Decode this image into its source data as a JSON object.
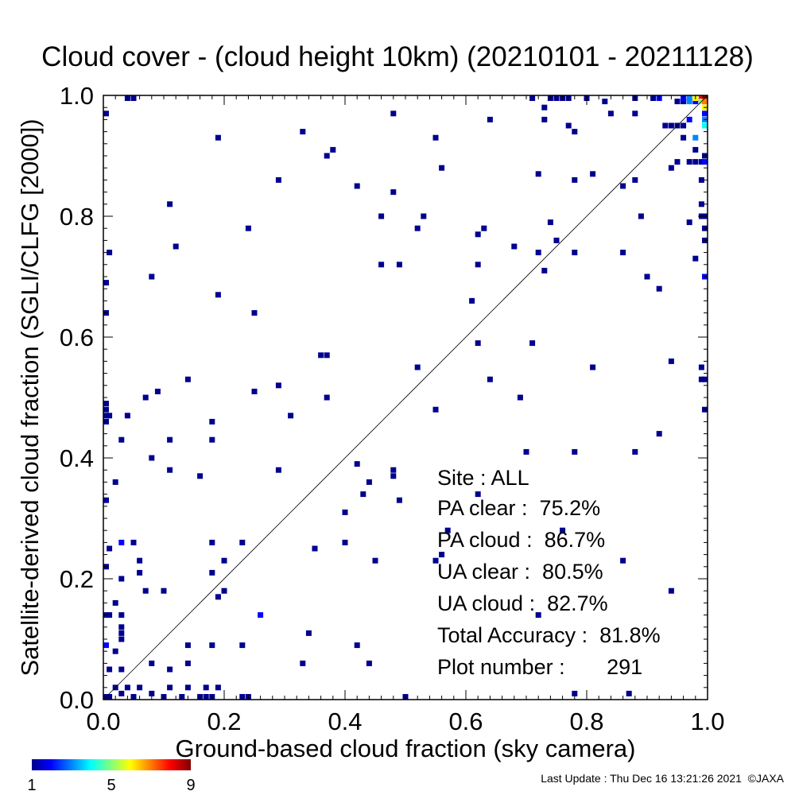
{
  "chart_data": {
    "type": "heatmap",
    "title": "Cloud cover - (cloud height 10km)  (20210101 - 20211128)",
    "xlabel": "Ground-based cloud fraction (sky camera)",
    "ylabel": "Satellite-derived cloud fraction (SGLI/CLFG [2000])",
    "xlim": [
      0,
      1
    ],
    "ylim": [
      0,
      1
    ],
    "xticks": [
      "0.0",
      "0.2",
      "0.4",
      "0.6",
      "0.8",
      "1.0"
    ],
    "yticks": [
      "0.0",
      "0.2",
      "0.4",
      "0.6",
      "0.8",
      "1.0"
    ],
    "bin_size": 0.01,
    "grid": false,
    "diagonal_line": true,
    "colorbar": {
      "min": 1,
      "max": 9,
      "ticks": [
        "1",
        "5",
        "9"
      ],
      "colors": [
        "#00008f",
        "#0000ff",
        "#00ffff",
        "#ffff00",
        "#ff0000",
        "#800000"
      ]
    },
    "points": [
      {
        "x": 0.0,
        "y": 0.0,
        "c": 1
      },
      {
        "x": 0.01,
        "y": 0.0,
        "c": 1
      },
      {
        "x": 0.02,
        "y": 0.02,
        "c": 1
      },
      {
        "x": 0.03,
        "y": 0.01,
        "c": 1
      },
      {
        "x": 0.04,
        "y": 0.02,
        "c": 1
      },
      {
        "x": 0.05,
        "y": 0.0,
        "c": 1
      },
      {
        "x": 0.06,
        "y": 0.02,
        "c": 1
      },
      {
        "x": 0.08,
        "y": 0.01,
        "c": 1
      },
      {
        "x": 0.1,
        "y": 0.0,
        "c": 1
      },
      {
        "x": 0.13,
        "y": 0.0,
        "c": 1
      },
      {
        "x": 0.16,
        "y": 0.0,
        "c": 1
      },
      {
        "x": 0.17,
        "y": 0.0,
        "c": 1
      },
      {
        "x": 0.18,
        "y": 0.0,
        "c": 1
      },
      {
        "x": 0.23,
        "y": 0.0,
        "c": 1
      },
      {
        "x": 0.24,
        "y": 0.0,
        "c": 1
      },
      {
        "x": 0.5,
        "y": 0.0,
        "c": 1
      },
      {
        "x": 0.78,
        "y": 0.01,
        "c": 1
      },
      {
        "x": 0.87,
        "y": 0.01,
        "c": 1
      },
      {
        "x": 0.17,
        "y": 0.02,
        "c": 1
      },
      {
        "x": 0.19,
        "y": 0.02,
        "c": 1
      },
      {
        "x": 0.11,
        "y": 0.02,
        "c": 1
      },
      {
        "x": 0.14,
        "y": 0.02,
        "c": 1
      },
      {
        "x": 0.01,
        "y": 0.05,
        "c": 1
      },
      {
        "x": 0.03,
        "y": 0.05,
        "c": 1
      },
      {
        "x": 0.08,
        "y": 0.06,
        "c": 1
      },
      {
        "x": 0.11,
        "y": 0.05,
        "c": 1
      },
      {
        "x": 0.14,
        "y": 0.06,
        "c": 1
      },
      {
        "x": 0.33,
        "y": 0.06,
        "c": 1
      },
      {
        "x": 0.44,
        "y": 0.06,
        "c": 1
      },
      {
        "x": 0.0,
        "y": 0.09,
        "c": 2
      },
      {
        "x": 0.02,
        "y": 0.08,
        "c": 1
      },
      {
        "x": 0.03,
        "y": 0.1,
        "c": 1
      },
      {
        "x": 0.03,
        "y": 0.11,
        "c": 1
      },
      {
        "x": 0.03,
        "y": 0.12,
        "c": 1
      },
      {
        "x": 0.14,
        "y": 0.09,
        "c": 1
      },
      {
        "x": 0.18,
        "y": 0.09,
        "c": 1
      },
      {
        "x": 0.23,
        "y": 0.09,
        "c": 1
      },
      {
        "x": 0.34,
        "y": 0.11,
        "c": 1
      },
      {
        "x": 0.42,
        "y": 0.09,
        "c": 1
      },
      {
        "x": 0.0,
        "y": 0.14,
        "c": 1
      },
      {
        "x": 0.01,
        "y": 0.14,
        "c": 1
      },
      {
        "x": 0.03,
        "y": 0.14,
        "c": 1
      },
      {
        "x": 0.26,
        "y": 0.14,
        "c": 2
      },
      {
        "x": 0.72,
        "y": 0.14,
        "c": 1
      },
      {
        "x": 0.1,
        "y": 0.18,
        "c": 1
      },
      {
        "x": 0.07,
        "y": 0.18,
        "c": 1
      },
      {
        "x": 0.02,
        "y": 0.16,
        "c": 1
      },
      {
        "x": 0.19,
        "y": 0.17,
        "c": 1
      },
      {
        "x": 0.2,
        "y": 0.18,
        "c": 1
      },
      {
        "x": 0.94,
        "y": 0.18,
        "c": 1
      },
      {
        "x": 0.0,
        "y": 0.22,
        "c": 1
      },
      {
        "x": 0.03,
        "y": 0.2,
        "c": 1
      },
      {
        "x": 0.06,
        "y": 0.21,
        "c": 1
      },
      {
        "x": 0.06,
        "y": 0.23,
        "c": 1
      },
      {
        "x": 0.18,
        "y": 0.21,
        "c": 1
      },
      {
        "x": 0.2,
        "y": 0.23,
        "c": 1
      },
      {
        "x": 0.45,
        "y": 0.23,
        "c": 1
      },
      {
        "x": 0.56,
        "y": 0.24,
        "c": 1
      },
      {
        "x": 0.55,
        "y": 0.23,
        "c": 1
      },
      {
        "x": 0.57,
        "y": 0.28,
        "c": 1
      },
      {
        "x": 0.76,
        "y": 0.28,
        "c": 1
      },
      {
        "x": 0.86,
        "y": 0.23,
        "c": 1
      },
      {
        "x": 0.01,
        "y": 0.25,
        "c": 1
      },
      {
        "x": 0.03,
        "y": 0.26,
        "c": 2
      },
      {
        "x": 0.05,
        "y": 0.26,
        "c": 1
      },
      {
        "x": 0.18,
        "y": 0.26,
        "c": 1
      },
      {
        "x": 0.23,
        "y": 0.26,
        "c": 1
      },
      {
        "x": 0.35,
        "y": 0.25,
        "c": 1
      },
      {
        "x": 0.4,
        "y": 0.26,
        "c": 1
      },
      {
        "x": 0.0,
        "y": 0.33,
        "c": 1
      },
      {
        "x": 0.02,
        "y": 0.36,
        "c": 1
      },
      {
        "x": 0.4,
        "y": 0.31,
        "c": 1
      },
      {
        "x": 0.43,
        "y": 0.34,
        "c": 1
      },
      {
        "x": 0.44,
        "y": 0.36,
        "c": 1
      },
      {
        "x": 0.48,
        "y": 0.37,
        "c": 1
      },
      {
        "x": 0.48,
        "y": 0.38,
        "c": 1
      },
      {
        "x": 0.49,
        "y": 0.33,
        "c": 1
      },
      {
        "x": 0.62,
        "y": 0.34,
        "c": 1
      },
      {
        "x": 0.42,
        "y": 0.39,
        "c": 1
      },
      {
        "x": 0.29,
        "y": 0.38,
        "c": 1
      },
      {
        "x": 0.11,
        "y": 0.38,
        "c": 1
      },
      {
        "x": 0.16,
        "y": 0.37,
        "c": 1
      },
      {
        "x": 0.08,
        "y": 0.4,
        "c": 1
      },
      {
        "x": 0.7,
        "y": 0.41,
        "c": 1
      },
      {
        "x": 0.78,
        "y": 0.41,
        "c": 1
      },
      {
        "x": 0.88,
        "y": 0.41,
        "c": 1
      },
      {
        "x": 0.03,
        "y": 0.43,
        "c": 1
      },
      {
        "x": 0.11,
        "y": 0.43,
        "c": 1
      },
      {
        "x": 0.18,
        "y": 0.43,
        "c": 1
      },
      {
        "x": 0.92,
        "y": 0.44,
        "c": 1
      },
      {
        "x": 0.0,
        "y": 0.46,
        "c": 1
      },
      {
        "x": 0.0,
        "y": 0.47,
        "c": 1
      },
      {
        "x": 0.0,
        "y": 0.48,
        "c": 1
      },
      {
        "x": 0.0,
        "y": 0.49,
        "c": 1
      },
      {
        "x": 0.01,
        "y": 0.47,
        "c": 1
      },
      {
        "x": 0.04,
        "y": 0.47,
        "c": 1
      },
      {
        "x": 0.07,
        "y": 0.5,
        "c": 1
      },
      {
        "x": 0.09,
        "y": 0.51,
        "c": 1
      },
      {
        "x": 0.14,
        "y": 0.53,
        "c": 1
      },
      {
        "x": 0.18,
        "y": 0.46,
        "c": 1
      },
      {
        "x": 0.25,
        "y": 0.51,
        "c": 1
      },
      {
        "x": 0.29,
        "y": 0.52,
        "c": 1
      },
      {
        "x": 0.31,
        "y": 0.47,
        "c": 1
      },
      {
        "x": 0.37,
        "y": 0.5,
        "c": 1
      },
      {
        "x": 0.55,
        "y": 0.48,
        "c": 1
      },
      {
        "x": 0.52,
        "y": 0.55,
        "c": 1
      },
      {
        "x": 0.64,
        "y": 0.53,
        "c": 1
      },
      {
        "x": 0.69,
        "y": 0.5,
        "c": 1
      },
      {
        "x": 0.81,
        "y": 0.55,
        "c": 1
      },
      {
        "x": 0.94,
        "y": 0.56,
        "c": 1
      },
      {
        "x": 0.99,
        "y": 0.55,
        "c": 1
      },
      {
        "x": 0.99,
        "y": 0.53,
        "c": 1
      },
      {
        "x": 1.0,
        "y": 0.53,
        "c": 1
      },
      {
        "x": 1.0,
        "y": 0.48,
        "c": 1
      },
      {
        "x": 0.36,
        "y": 0.57,
        "c": 1
      },
      {
        "x": 0.37,
        "y": 0.57,
        "c": 1
      },
      {
        "x": 0.62,
        "y": 0.59,
        "c": 1
      },
      {
        "x": 0.71,
        "y": 0.59,
        "c": 1
      },
      {
        "x": 0.0,
        "y": 0.64,
        "c": 1
      },
      {
        "x": 0.25,
        "y": 0.64,
        "c": 1
      },
      {
        "x": 0.61,
        "y": 0.66,
        "c": 1
      },
      {
        "x": 0.19,
        "y": 0.67,
        "c": 1
      },
      {
        "x": 0.0,
        "y": 0.69,
        "c": 1
      },
      {
        "x": 0.08,
        "y": 0.7,
        "c": 1
      },
      {
        "x": 0.92,
        "y": 0.68,
        "c": 1
      },
      {
        "x": 0.9,
        "y": 0.7,
        "c": 1
      },
      {
        "x": 1.0,
        "y": 0.7,
        "c": 2
      },
      {
        "x": 0.73,
        "y": 0.71,
        "c": 1
      },
      {
        "x": 0.01,
        "y": 0.74,
        "c": 1
      },
      {
        "x": 0.12,
        "y": 0.75,
        "c": 1
      },
      {
        "x": 0.46,
        "y": 0.72,
        "c": 1
      },
      {
        "x": 0.49,
        "y": 0.72,
        "c": 1
      },
      {
        "x": 0.62,
        "y": 0.72,
        "c": 1
      },
      {
        "x": 0.68,
        "y": 0.75,
        "c": 1
      },
      {
        "x": 0.72,
        "y": 0.74,
        "c": 1
      },
      {
        "x": 0.75,
        "y": 0.76,
        "c": 1
      },
      {
        "x": 0.78,
        "y": 0.74,
        "c": 1
      },
      {
        "x": 0.86,
        "y": 0.74,
        "c": 1
      },
      {
        "x": 0.98,
        "y": 0.73,
        "c": 1
      },
      {
        "x": 1.0,
        "y": 0.76,
        "c": 1
      },
      {
        "x": 0.24,
        "y": 0.78,
        "c": 1
      },
      {
        "x": 0.52,
        "y": 0.78,
        "c": 1
      },
      {
        "x": 0.53,
        "y": 0.8,
        "c": 1
      },
      {
        "x": 0.46,
        "y": 0.8,
        "c": 1
      },
      {
        "x": 0.62,
        "y": 0.77,
        "c": 1
      },
      {
        "x": 0.63,
        "y": 0.78,
        "c": 1
      },
      {
        "x": 0.74,
        "y": 0.79,
        "c": 1
      },
      {
        "x": 0.89,
        "y": 0.8,
        "c": 1
      },
      {
        "x": 0.97,
        "y": 0.79,
        "c": 1
      },
      {
        "x": 0.99,
        "y": 0.8,
        "c": 1
      },
      {
        "x": 1.0,
        "y": 0.8,
        "c": 1
      },
      {
        "x": 1.0,
        "y": 0.78,
        "c": 1
      },
      {
        "x": 0.11,
        "y": 0.82,
        "c": 1
      },
      {
        "x": 0.48,
        "y": 0.84,
        "c": 1
      },
      {
        "x": 0.42,
        "y": 0.85,
        "c": 1
      },
      {
        "x": 0.29,
        "y": 0.86,
        "c": 1
      },
      {
        "x": 0.72,
        "y": 0.87,
        "c": 1
      },
      {
        "x": 0.78,
        "y": 0.86,
        "c": 1
      },
      {
        "x": 0.81,
        "y": 0.87,
        "c": 1
      },
      {
        "x": 0.86,
        "y": 0.85,
        "c": 1
      },
      {
        "x": 0.88,
        "y": 0.86,
        "c": 1
      },
      {
        "x": 0.99,
        "y": 0.82,
        "c": 1
      },
      {
        "x": 0.99,
        "y": 0.86,
        "c": 1
      },
      {
        "x": 0.37,
        "y": 0.9,
        "c": 1
      },
      {
        "x": 0.38,
        "y": 0.91,
        "c": 1
      },
      {
        "x": 0.56,
        "y": 0.88,
        "c": 1
      },
      {
        "x": 0.94,
        "y": 0.88,
        "c": 1
      },
      {
        "x": 0.95,
        "y": 0.89,
        "c": 1
      },
      {
        "x": 0.97,
        "y": 0.89,
        "c": 1
      },
      {
        "x": 0.98,
        "y": 0.89,
        "c": 1
      },
      {
        "x": 0.99,
        "y": 0.89,
        "c": 1
      },
      {
        "x": 1.0,
        "y": 0.89,
        "c": 2
      },
      {
        "x": 1.0,
        "y": 0.9,
        "c": 1
      },
      {
        "x": 0.98,
        "y": 0.91,
        "c": 1
      },
      {
        "x": 0.19,
        "y": 0.93,
        "c": 1
      },
      {
        "x": 0.33,
        "y": 0.94,
        "c": 1
      },
      {
        "x": 0.55,
        "y": 0.93,
        "c": 1
      },
      {
        "x": 0.78,
        "y": 0.94,
        "c": 1
      },
      {
        "x": 0.96,
        "y": 0.93,
        "c": 1
      },
      {
        "x": 0.98,
        "y": 0.93,
        "c": 3
      },
      {
        "x": 0.64,
        "y": 0.96,
        "c": 1
      },
      {
        "x": 0.73,
        "y": 0.96,
        "c": 1
      },
      {
        "x": 0.77,
        "y": 0.95,
        "c": 1
      },
      {
        "x": 0.93,
        "y": 0.95,
        "c": 1
      },
      {
        "x": 0.94,
        "y": 0.95,
        "c": 1
      },
      {
        "x": 0.95,
        "y": 0.95,
        "c": 1
      },
      {
        "x": 0.96,
        "y": 0.95,
        "c": 1
      },
      {
        "x": 0.97,
        "y": 0.96,
        "c": 2
      },
      {
        "x": 1.0,
        "y": 0.95,
        "c": 4
      },
      {
        "x": 1.0,
        "y": 0.96,
        "c": 3
      },
      {
        "x": 0.0,
        "y": 0.97,
        "c": 1
      },
      {
        "x": 0.48,
        "y": 0.97,
        "c": 1
      },
      {
        "x": 0.73,
        "y": 0.98,
        "c": 1
      },
      {
        "x": 0.84,
        "y": 0.97,
        "c": 1
      },
      {
        "x": 0.88,
        "y": 0.97,
        "c": 1
      },
      {
        "x": 1.0,
        "y": 0.97,
        "c": 2
      },
      {
        "x": 0.04,
        "y": 1.0,
        "c": 1
      },
      {
        "x": 0.05,
        "y": 1.0,
        "c": 1
      },
      {
        "x": 0.71,
        "y": 1.0,
        "c": 1
      },
      {
        "x": 0.74,
        "y": 1.0,
        "c": 1
      },
      {
        "x": 0.75,
        "y": 1.0,
        "c": 1
      },
      {
        "x": 0.76,
        "y": 1.0,
        "c": 1
      },
      {
        "x": 0.77,
        "y": 1.0,
        "c": 1
      },
      {
        "x": 0.8,
        "y": 1.0,
        "c": 1
      },
      {
        "x": 0.83,
        "y": 0.99,
        "c": 1
      },
      {
        "x": 0.88,
        "y": 1.0,
        "c": 1
      },
      {
        "x": 0.91,
        "y": 1.0,
        "c": 1
      },
      {
        "x": 0.92,
        "y": 1.0,
        "c": 2
      },
      {
        "x": 0.95,
        "y": 0.99,
        "c": 1
      },
      {
        "x": 0.96,
        "y": 0.99,
        "c": 1
      },
      {
        "x": 0.96,
        "y": 1.0,
        "c": 2
      },
      {
        "x": 0.97,
        "y": 0.99,
        "c": 3
      },
      {
        "x": 0.97,
        "y": 1.0,
        "c": 3
      },
      {
        "x": 0.98,
        "y": 0.99,
        "c": 2
      },
      {
        "x": 0.98,
        "y": 1.0,
        "c": 6
      },
      {
        "x": 0.99,
        "y": 1.0,
        "c": 8
      },
      {
        "x": 1.0,
        "y": 1.0,
        "c": 9
      },
      {
        "x": 0.99,
        "y": 0.99,
        "c": 5
      },
      {
        "x": 1.0,
        "y": 0.99,
        "c": 7
      },
      {
        "x": 1.0,
        "y": 0.98,
        "c": 6
      }
    ]
  },
  "stats": {
    "site": "Site : ALL",
    "pa_clear": "PA clear :  75.2%",
    "pa_cloud": "PA cloud :  86.7%",
    "ua_clear": "UA clear :  80.5%",
    "ua_cloud": "UA cloud :  82.7%",
    "total_accuracy": "Total Accuracy :  81.8%",
    "plot_number": "Plot number :       291"
  },
  "footer": "Last Update : Thu Dec 16 13:21:26 2021  ©JAXA"
}
